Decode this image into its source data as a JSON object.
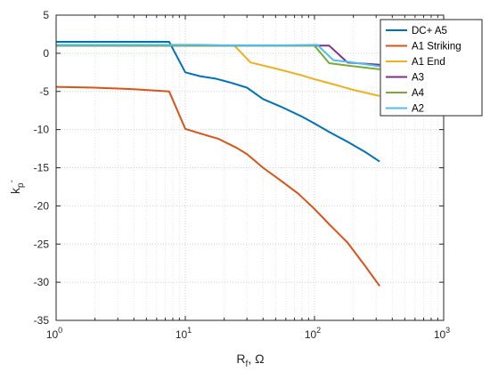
{
  "chart_data": {
    "type": "line",
    "xscale": "log",
    "xlim": [
      1,
      1000
    ],
    "ylim": [
      -35,
      5
    ],
    "xlabel_main": "R",
    "xlabel_sub": "f",
    "xlabel_unit": ", Ω",
    "ylabel_main": "k",
    "ylabel_sub": "p",
    "ylabel_sup": "-",
    "x_ticks": [
      {
        "value": 1,
        "base": "10",
        "exp": "0"
      },
      {
        "value": 10,
        "base": "10",
        "exp": "1"
      },
      {
        "value": 100,
        "base": "10",
        "exp": "2"
      },
      {
        "value": 1000,
        "base": "10",
        "exp": "3"
      }
    ],
    "y_ticks": [
      5,
      0,
      -5,
      -10,
      -15,
      -20,
      -25,
      -30,
      -35
    ],
    "grid": "major and minor, dotted",
    "legend_position": "top-right",
    "series": [
      {
        "name": "DC+ A5",
        "color": "#0072BD",
        "x": [
          1,
          7.5,
          10,
          13,
          17,
          23,
          30,
          40,
          55,
          80,
          100,
          130,
          180,
          250,
          320
        ],
        "y": [
          1.5,
          1.5,
          -2.5,
          -3,
          -3.3,
          -3.9,
          -4.5,
          -6,
          -7,
          -8.3,
          -9.2,
          -10.3,
          -11.6,
          -13,
          -14.2
        ]
      },
      {
        "name": "A1 Striking",
        "color": "#D95319",
        "x": [
          1,
          2,
          4,
          7.5,
          10,
          13,
          18,
          25,
          30,
          40,
          55,
          75,
          100,
          130,
          180,
          250,
          320
        ],
        "y": [
          -4.4,
          -4.5,
          -4.7,
          -5,
          -9.9,
          -10.5,
          -11.2,
          -12.4,
          -13.2,
          -15,
          -16.7,
          -18.4,
          -20.4,
          -22.4,
          -24.8,
          -28,
          -30.5
        ]
      },
      {
        "name": "A1 End",
        "color": "#EDB120",
        "x": [
          1,
          10,
          24,
          32,
          50,
          80,
          100,
          150,
          200,
          320
        ],
        "y": [
          1,
          1,
          1,
          -1.2,
          -2,
          -2.9,
          -3.4,
          -4.2,
          -4.8,
          -5.6
        ]
      },
      {
        "name": "A3",
        "color": "#7E2F8E",
        "x": [
          1,
          20,
          100,
          130,
          180,
          320
        ],
        "y": [
          1,
          1,
          1,
          1,
          -1.2,
          -1.5
        ]
      },
      {
        "name": "A4",
        "color": "#77AC30",
        "x": [
          1,
          20,
          100,
          130,
          180,
          320
        ],
        "y": [
          1,
          1,
          1,
          -1.3,
          -1.6,
          -2.1
        ]
      },
      {
        "name": "A2",
        "color": "#4DBEEE",
        "x": [
          1,
          8,
          13,
          20,
          30,
          60,
          105,
          140,
          200,
          320
        ],
        "y": [
          1.1,
          1.1,
          1.1,
          1.05,
          1.05,
          1.05,
          1.1,
          -0.9,
          -1.2,
          -1.7
        ]
      }
    ]
  }
}
